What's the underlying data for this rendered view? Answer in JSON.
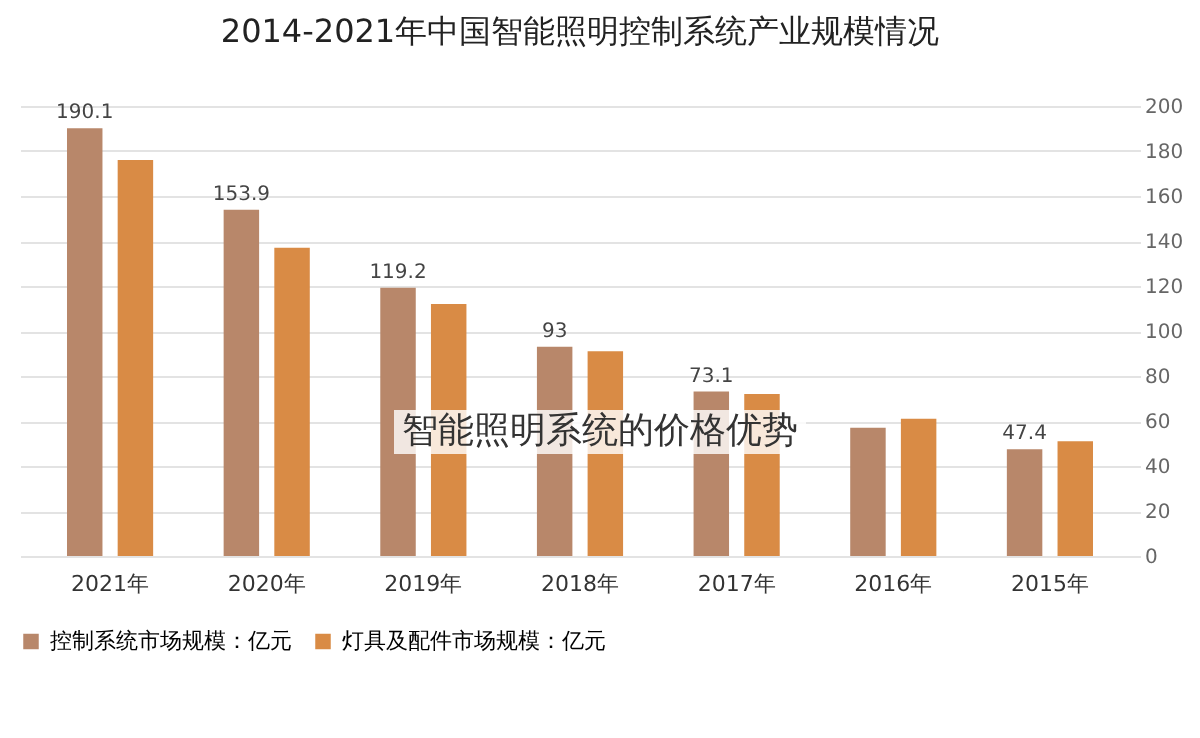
{
  "chart_data": {
    "type": "bar",
    "title": "2014-2021年中国智能照明控制系统产业规模情况",
    "categories": [
      "2021年",
      "2020年",
      "2019年",
      "2018年",
      "2017年",
      "2016年",
      "2015年"
    ],
    "series": [
      {
        "name": "控制系统市场规模：亿元",
        "color": "#b8876a",
        "values": [
          190.1,
          153.9,
          119.2,
          93,
          73.1,
          57,
          47.4
        ],
        "value_labels": [
          "190.1",
          "153.9",
          "119.2",
          "93",
          "73.1",
          null,
          "47.4"
        ]
      },
      {
        "name": "灯具及配件市场规模：亿元",
        "color": "#d98b45",
        "values": [
          176,
          137,
          112,
          91,
          72,
          61,
          51
        ]
      }
    ],
    "ylim": [
      0,
      200
    ],
    "yticks": [
      0,
      20,
      40,
      60,
      80,
      100,
      120,
      140,
      160,
      180,
      200
    ],
    "grid": "y",
    "legend": "bottom",
    "annotations": [
      "智能照明系统的价格优势"
    ]
  }
}
